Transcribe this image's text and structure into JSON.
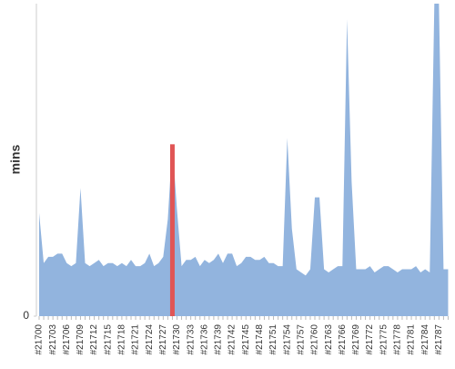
{
  "chart_data": {
    "type": "area",
    "y_label": "mins",
    "categories": [
      "#21700",
      null,
      null,
      "#21703",
      null,
      null,
      "#21706",
      null,
      null,
      "#21709",
      null,
      null,
      "#21712",
      null,
      null,
      "#21715",
      null,
      null,
      "#21718",
      null,
      null,
      "#21721",
      null,
      null,
      "#21724",
      null,
      null,
      "#21727",
      null,
      null,
      "#21730",
      null,
      null,
      "#21733",
      null,
      null,
      "#21736",
      null,
      null,
      "#21739",
      null,
      null,
      "#21742",
      null,
      null,
      "#21745",
      null,
      null,
      "#21748",
      null,
      null,
      "#21751",
      null,
      null,
      "#21754",
      null,
      null,
      "#21757",
      null,
      null,
      "#21760",
      null,
      null,
      "#21763",
      null,
      null,
      "#21766",
      null,
      null,
      "#21769",
      null,
      null,
      "#21772",
      null,
      null,
      "#21775",
      null,
      null,
      "#21778",
      null,
      null,
      "#21781",
      null,
      null,
      "#21784",
      null,
      null,
      "#21787",
      null,
      null
    ],
    "values": [
      33,
      17,
      19,
      19,
      20,
      20,
      17,
      16,
      17,
      41,
      17,
      16,
      17,
      18,
      16,
      17,
      17,
      16,
      17,
      16,
      18,
      16,
      16,
      17,
      20,
      16,
      17,
      19,
      31,
      55,
      34,
      16,
      18,
      18,
      19,
      16,
      18,
      17,
      18,
      20,
      17,
      20,
      20,
      16,
      17,
      19,
      19,
      18,
      18,
      19,
      17,
      17,
      16,
      16,
      57,
      28,
      15,
      14,
      13,
      15,
      38,
      38,
      15,
      14,
      15,
      16,
      16,
      95,
      43,
      15,
      15,
      15,
      16,
      14,
      15,
      16,
      16,
      15,
      14,
      15,
      15,
      15,
      16,
      14,
      15,
      14,
      100,
      100,
      15,
      15
    ],
    "color": "#92b4de",
    "highlight": 29,
    "highlight_color": "#e05555",
    "ylim": [
      0,
      100
    ],
    "yticks": [
      0
    ]
  }
}
